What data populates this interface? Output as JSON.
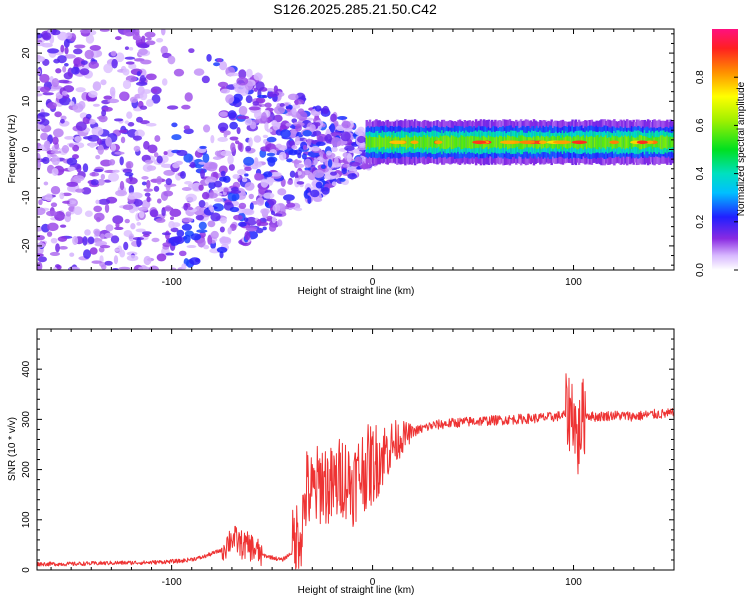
{
  "title": "S126.2025.285.21.50.C42",
  "chart_data": [
    {
      "type": "heatmap",
      "name": "spectrogram",
      "xlabel": "Height of straight line (km)",
      "ylabel": "Frequency (Hz)",
      "xlim": [
        -167,
        150
      ],
      "ylim": [
        -25,
        25
      ],
      "xticks": [
        -100,
        0,
        100
      ],
      "yticks": [
        -20,
        -10,
        0,
        10,
        20
      ],
      "colorbar": {
        "label": "Normalized spectral amplitude",
        "range": [
          0,
          1
        ],
        "ticks": [
          0.0,
          0.2,
          0.4,
          0.6,
          0.8
        ],
        "tick_labels": [
          "0.0",
          "0.2",
          "0.4",
          "0.6",
          "0.8"
        ]
      },
      "features": [
        {
          "region_km": [
            -167,
            0
          ],
          "description": "scattered noise, wide frequency spread"
        },
        {
          "region_km": [
            0,
            150
          ],
          "frequency_hz": 1.5,
          "description": "narrow band, amplitude up to 0.9"
        }
      ]
    },
    {
      "type": "line",
      "name": "snr",
      "xlabel": "Height of straight line (km)",
      "ylabel": "SNR (10 * v/v)",
      "xlim": [
        -167,
        150
      ],
      "ylim": [
        0,
        480
      ],
      "xticks": [
        -100,
        0,
        100
      ],
      "yticks": [
        0,
        100,
        200,
        300,
        400
      ],
      "color": "#ee3333",
      "series": [
        {
          "name": "SNR",
          "x": [
            -167,
            -150,
            -130,
            -110,
            -95,
            -85,
            -75,
            -70,
            -65,
            -60,
            -55,
            -50,
            -45,
            -40,
            -35,
            -33,
            -30,
            -25,
            -20,
            -15,
            -10,
            -5,
            0,
            5,
            10,
            15,
            20,
            25,
            30,
            40,
            50,
            60,
            70,
            80,
            90,
            95,
            100,
            102,
            104,
            106,
            110,
            120,
            130,
            140,
            150
          ],
          "y": [
            12,
            12,
            14,
            15,
            18,
            25,
            40,
            65,
            50,
            45,
            30,
            25,
            20,
            35,
            90,
            160,
            150,
            180,
            160,
            190,
            170,
            200,
            210,
            230,
            250,
            265,
            275,
            282,
            288,
            293,
            296,
            298,
            300,
            302,
            305,
            308,
            320,
            250,
            300,
            310,
            305,
            308,
            306,
            310,
            312
          ]
        }
      ]
    }
  ]
}
